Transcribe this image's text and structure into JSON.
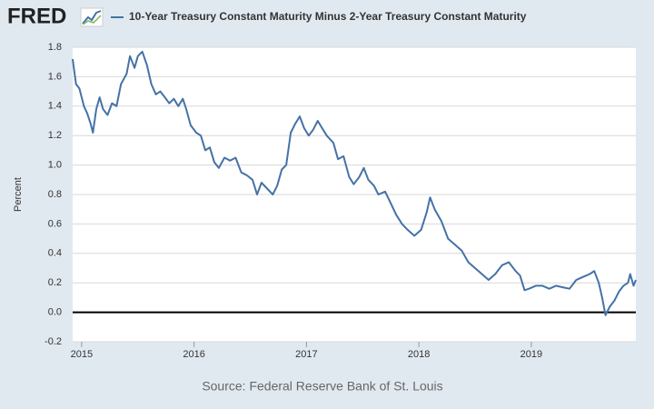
{
  "logo": "FRED",
  "chart_data": {
    "type": "line",
    "ylabel": "Percent",
    "source": "Source: Federal Reserve Bank of St. Louis",
    "x": [
      2014.92,
      2014.95,
      2014.98,
      2015.02,
      2015.05,
      2015.08,
      2015.1,
      2015.13,
      2015.16,
      2015.19,
      2015.23,
      2015.27,
      2015.31,
      2015.35,
      2015.4,
      2015.43,
      2015.47,
      2015.5,
      2015.54,
      2015.58,
      2015.62,
      2015.66,
      2015.7,
      2015.74,
      2015.78,
      2015.82,
      2015.86,
      2015.9,
      2015.93,
      2015.97,
      2016.02,
      2016.06,
      2016.1,
      2016.14,
      2016.18,
      2016.22,
      2016.27,
      2016.32,
      2016.37,
      2016.42,
      2016.47,
      2016.52,
      2016.56,
      2016.6,
      2016.65,
      2016.7,
      2016.74,
      2016.78,
      2016.82,
      2016.86,
      2016.9,
      2016.94,
      2016.98,
      2017.02,
      2017.06,
      2017.1,
      2017.14,
      2017.18,
      2017.24,
      2017.28,
      2017.33,
      2017.38,
      2017.42,
      2017.47,
      2017.51,
      2017.55,
      2017.6,
      2017.64,
      2017.7,
      2017.75,
      2017.8,
      2017.85,
      2017.9,
      2017.96,
      2018.02,
      2018.07,
      2018.1,
      2018.14,
      2018.2,
      2018.26,
      2018.32,
      2018.38,
      2018.44,
      2018.5,
      2018.56,
      2018.62,
      2018.68,
      2018.74,
      2018.8,
      2018.86,
      2018.9,
      2018.94,
      2018.98,
      2019.04,
      2019.1,
      2019.16,
      2019.22,
      2019.28,
      2019.34,
      2019.4,
      2019.46,
      2019.52,
      2019.56,
      2019.6,
      2019.63,
      2019.66,
      2019.7,
      2019.74,
      2019.78,
      2019.82,
      2019.86,
      2019.88,
      2019.91,
      2019.93
    ],
    "series": [
      {
        "name": "10-Year Treasury Constant Maturity Minus 2-Year Treasury Constant Maturity",
        "color": "#4572a7",
        "values": [
          1.72,
          1.55,
          1.52,
          1.4,
          1.35,
          1.28,
          1.22,
          1.38,
          1.46,
          1.38,
          1.34,
          1.42,
          1.4,
          1.55,
          1.62,
          1.74,
          1.66,
          1.74,
          1.77,
          1.68,
          1.55,
          1.48,
          1.5,
          1.46,
          1.42,
          1.45,
          1.4,
          1.45,
          1.38,
          1.27,
          1.22,
          1.2,
          1.1,
          1.12,
          1.02,
          0.98,
          1.05,
          1.03,
          1.05,
          0.95,
          0.93,
          0.9,
          0.8,
          0.88,
          0.84,
          0.8,
          0.86,
          0.97,
          1.0,
          1.22,
          1.28,
          1.33,
          1.25,
          1.2,
          1.24,
          1.3,
          1.25,
          1.2,
          1.15,
          1.04,
          1.06,
          0.92,
          0.87,
          0.92,
          0.98,
          0.9,
          0.86,
          0.8,
          0.82,
          0.74,
          0.66,
          0.6,
          0.56,
          0.52,
          0.56,
          0.68,
          0.78,
          0.7,
          0.62,
          0.5,
          0.46,
          0.42,
          0.34,
          0.3,
          0.26,
          0.22,
          0.26,
          0.32,
          0.34,
          0.28,
          0.25,
          0.15,
          0.16,
          0.18,
          0.18,
          0.16,
          0.18,
          0.17,
          0.16,
          0.22,
          0.24,
          0.26,
          0.28,
          0.2,
          0.1,
          -0.02,
          0.04,
          0.08,
          0.14,
          0.18,
          0.2,
          0.26,
          0.18,
          0.22
        ]
      }
    ],
    "xlim": [
      2014.92,
      2019.93
    ],
    "xticks": [
      2015,
      2016,
      2017,
      2018,
      2019
    ],
    "ylim": [
      -0.2,
      1.8
    ],
    "yticks": [
      -0.2,
      {
        "value": 0,
        "label": "0.0"
      },
      0.2,
      0.4,
      0.6,
      0.8,
      {
        "value": 1,
        "label": "1.0"
      },
      1.2,
      1.4,
      1.6,
      1.8
    ],
    "grid": true
  }
}
